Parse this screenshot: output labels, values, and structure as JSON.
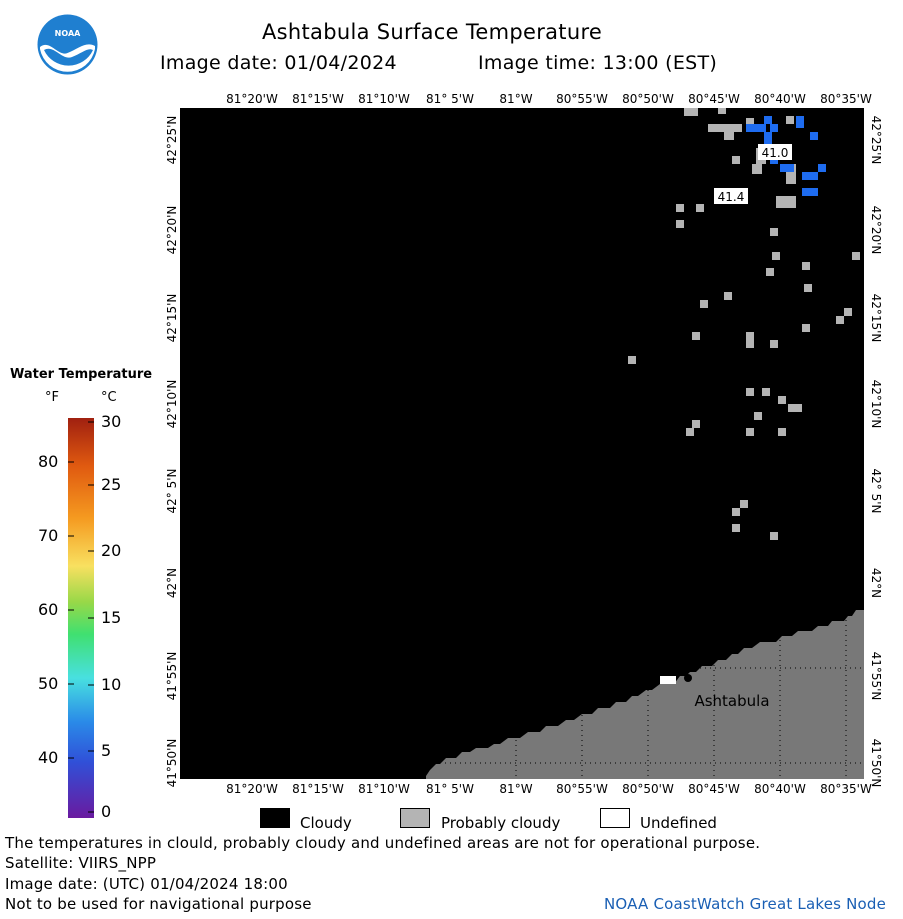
{
  "header": {
    "title": "Ashtabula Surface Temperature",
    "image_date": "Image date: 01/04/2024",
    "image_time": "Image time: 13:00 (EST)"
  },
  "logo": {
    "text": "NOAA",
    "icon": "noaa-logo-icon"
  },
  "map": {
    "lon_labels": [
      "81°20'W",
      "81°15'W",
      "81°10'W",
      "81° 5'W",
      "81°W",
      "80°55'W",
      "80°50'W",
      "80°45'W",
      "80°40'W",
      "80°35'W"
    ],
    "lat_labels": [
      "42°25'N",
      "42°20'N",
      "42°15'N",
      "42°10'N",
      "42° 5'N",
      "42°N",
      "41°55'N",
      "41°50'N"
    ],
    "city": "Ashtabula",
    "temp_labels": [
      "41.0",
      "41.4"
    ],
    "colors": {
      "cloudy": "#000000",
      "probably_cloudy": "#b4b4b4",
      "land": "#787878",
      "water_cold": "#1e6cf0",
      "undefined": "#ffffff"
    }
  },
  "legend": {
    "title": "Water Temperature",
    "unit_f": "°F",
    "unit_c": "°C",
    "f_values": [
      "80",
      "70",
      "60",
      "50",
      "40"
    ],
    "c_values": [
      "30",
      "25",
      "20",
      "15",
      "10",
      "5",
      "0"
    ]
  },
  "key": {
    "cloudy": "Cloudy",
    "probably_cloudy": "Probably cloudy",
    "undefined": "Undefined"
  },
  "footer": {
    "warning": "The temperatures in clould, probably cloudy and undefined areas are not for operational purpose.",
    "satellite": "Satellite: VIIRS_NPP",
    "utc_date": "Image date: (UTC) 01/04/2024  18:00",
    "nav_warning": "Not to be used for navigational purpose",
    "credit": "NOAA CoastWatch Great Lakes Node"
  }
}
